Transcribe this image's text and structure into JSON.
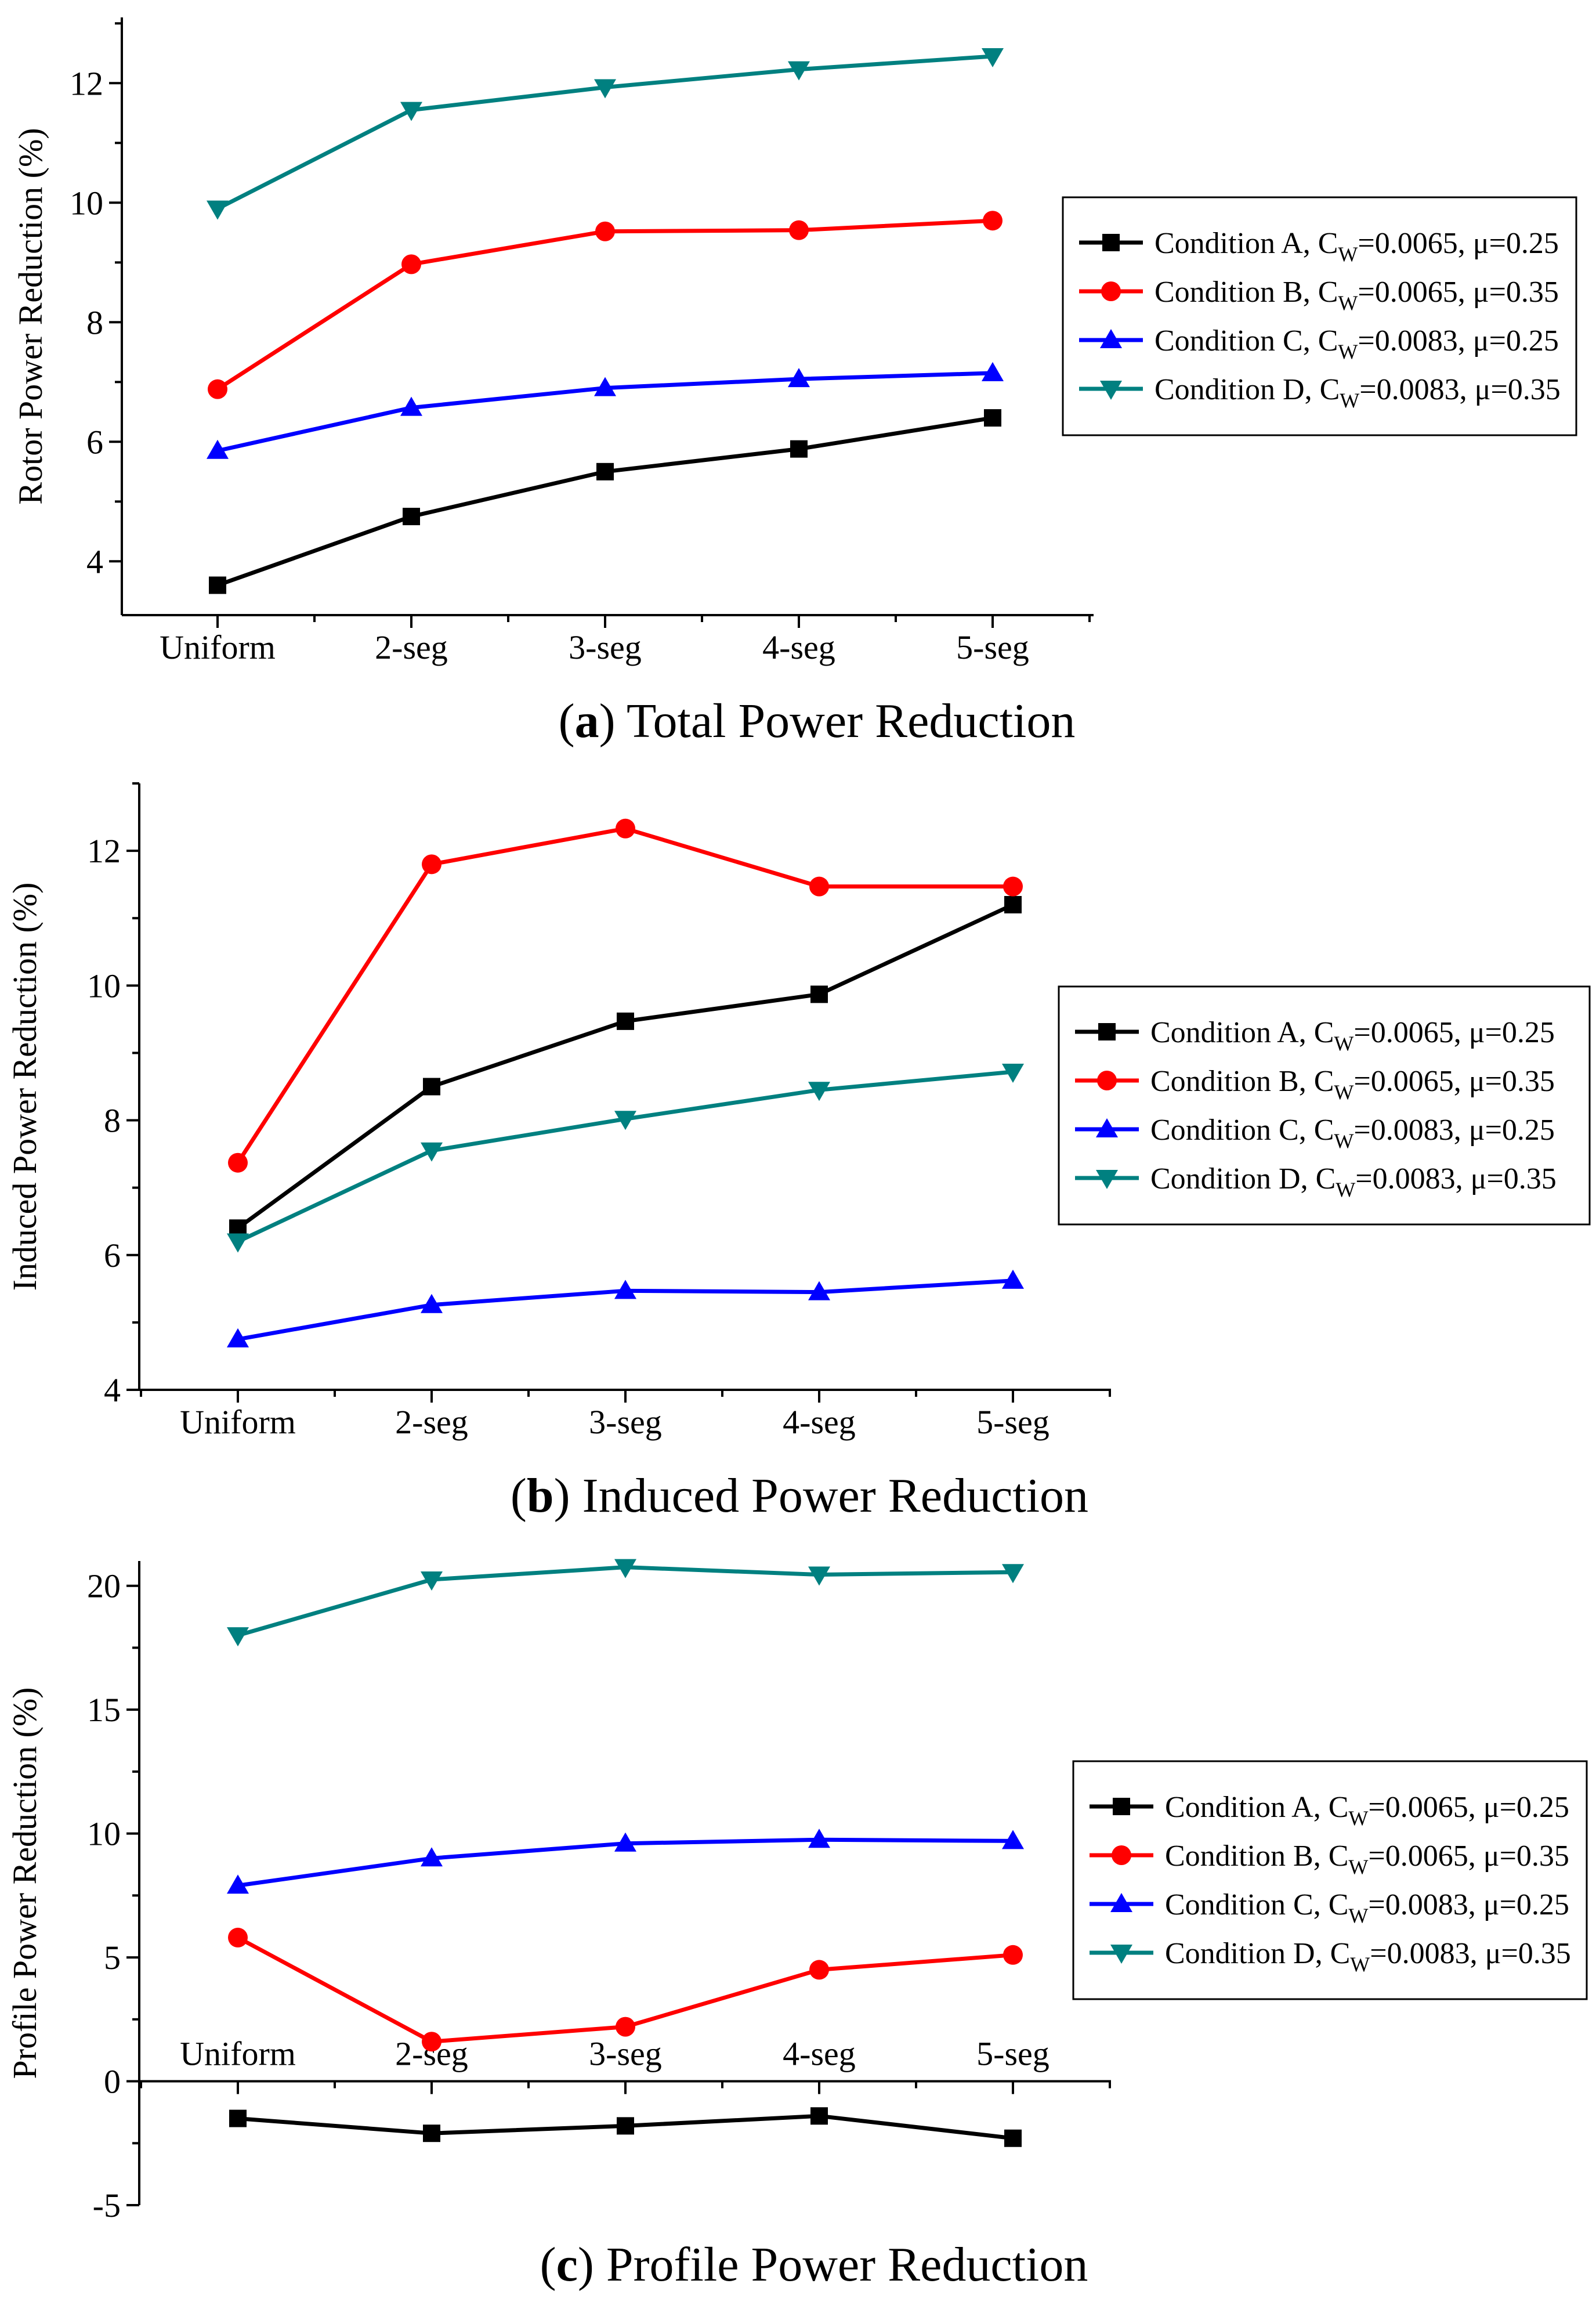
{
  "figure": {
    "captions": [
      {
        "letter": "a",
        "text": " Total Power Reduction"
      },
      {
        "letter": "b",
        "text": " Induced Power Reduction"
      },
      {
        "letter": "c",
        "text": " Profile Power Reduction"
      }
    ]
  },
  "legend": {
    "entries": [
      {
        "prefix": "Condition A, C",
        "sub": "W",
        "suffix": "=0.0065, μ=0.25"
      },
      {
        "prefix": "Condition B, C",
        "sub": "W",
        "suffix": "=0.0065, μ=0.35"
      },
      {
        "prefix": "Condition C, C",
        "sub": "W",
        "suffix": "=0.0083, μ=0.25"
      },
      {
        "prefix": "Condition D, C",
        "sub": "W",
        "suffix": "=0.0083, μ=0.35"
      }
    ]
  },
  "chart_data": [
    {
      "type": "line",
      "title": "(a) Total Power Reduction",
      "xlabel": "",
      "ylabel": "Rotor Power Reduction (%)",
      "categories": [
        "Uniform",
        "2-seg",
        "3-seg",
        "4-seg",
        "5-seg"
      ],
      "ylim": [
        3.1,
        13.1
      ],
      "yticks": [
        4,
        6,
        8,
        10,
        12
      ],
      "series": [
        {
          "name": "Condition A, CW=0.0065, μ=0.25",
          "color": "#000000",
          "marker": "square",
          "values": [
            3.6,
            4.75,
            5.5,
            5.88,
            6.4
          ]
        },
        {
          "name": "Condition B, CW=0.0065, μ=0.35",
          "color": "#ff0000",
          "marker": "circle",
          "values": [
            6.88,
            8.97,
            9.52,
            9.54,
            9.7
          ]
        },
        {
          "name": "Condition C, CW=0.0083, μ=0.25",
          "color": "#0000ff",
          "marker": "triangle-up",
          "values": [
            5.85,
            6.57,
            6.9,
            7.05,
            7.15
          ]
        },
        {
          "name": "Condition D, CW=0.0083, μ=0.35",
          "color": "#008080",
          "marker": "triangle-down",
          "values": [
            9.9,
            11.55,
            11.93,
            12.23,
            12.45
          ]
        }
      ],
      "legend_position": "right"
    },
    {
      "type": "line",
      "title": "(b) Induced Power Reduction",
      "xlabel": "",
      "ylabel": "Induced Power Reduction (%)",
      "categories": [
        "Uniform",
        "2-seg",
        "3-seg",
        "4-seg",
        "5-seg"
      ],
      "ylim": [
        4,
        13
      ],
      "yticks": [
        4,
        6,
        8,
        10,
        12
      ],
      "series": [
        {
          "name": "Condition A, CW=0.0065, μ=0.25",
          "color": "#000000",
          "marker": "square",
          "values": [
            6.4,
            8.5,
            9.47,
            9.87,
            11.2
          ]
        },
        {
          "name": "Condition B, CW=0.0065, μ=0.35",
          "color": "#ff0000",
          "marker": "circle",
          "values": [
            7.37,
            11.8,
            12.33,
            11.47,
            11.47
          ]
        },
        {
          "name": "Condition C, CW=0.0083, μ=0.25",
          "color": "#0000ff",
          "marker": "triangle-up",
          "values": [
            4.75,
            5.26,
            5.47,
            5.45,
            5.62
          ]
        },
        {
          "name": "Condition D, CW=0.0083, μ=0.35",
          "color": "#008080",
          "marker": "triangle-down",
          "values": [
            6.2,
            7.55,
            8.02,
            8.45,
            8.72
          ]
        }
      ],
      "legend_position": "right"
    },
    {
      "type": "line",
      "title": "(c) Profile Power Reduction",
      "xlabel": "",
      "ylabel": "Profile Power Reduction (%)",
      "categories": [
        "Uniform",
        "2-seg",
        "3-seg",
        "4-seg",
        "5-seg"
      ],
      "ylim": [
        -5,
        21
      ],
      "yticks": [
        -5,
        0,
        5,
        10,
        15,
        20
      ],
      "series": [
        {
          "name": "Condition A, CW=0.0065, μ=0.25",
          "color": "#000000",
          "marker": "square",
          "values": [
            -1.5,
            -2.1,
            -1.8,
            -1.4,
            -2.3
          ]
        },
        {
          "name": "Condition B, CW=0.0065, μ=0.35",
          "color": "#ff0000",
          "marker": "circle",
          "values": [
            5.8,
            1.6,
            2.2,
            4.5,
            5.1
          ]
        },
        {
          "name": "Condition C, CW=0.0083, μ=0.25",
          "color": "#0000ff",
          "marker": "triangle-up",
          "values": [
            7.9,
            9.0,
            9.6,
            9.75,
            9.7
          ]
        },
        {
          "name": "Condition D, CW=0.0083, μ=0.35",
          "color": "#008080",
          "marker": "triangle-down",
          "values": [
            18.0,
            20.25,
            20.75,
            20.45,
            20.55
          ]
        }
      ],
      "legend_position": "right"
    }
  ]
}
